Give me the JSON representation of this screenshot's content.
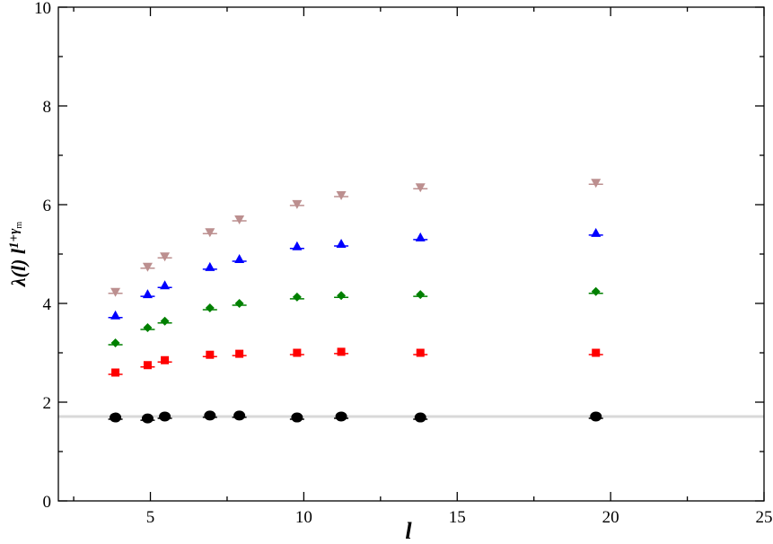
{
  "chart_data": {
    "type": "scatter",
    "xlabel": "l",
    "ylabel": "λ(l) l",
    "ylabel_superscript": "1+γ",
    "ylabel_subscript": "m",
    "xlim": [
      2,
      25
    ],
    "xticks": [
      5,
      10,
      15,
      20,
      25
    ],
    "xminorticks": [
      2.5,
      7.5,
      12.5,
      17.5,
      22.5
    ],
    "ylim": [
      0,
      10
    ],
    "yticks": [
      0,
      2,
      4,
      6,
      8,
      10
    ],
    "yminorticks": [
      1,
      3,
      5,
      7,
      9
    ],
    "hline": {
      "value": 1.71,
      "color": "#d9d9d9"
    },
    "x": [
      3.86,
      4.91,
      5.47,
      6.94,
      7.9,
      9.78,
      11.22,
      13.8,
      19.52
    ],
    "series": [
      {
        "color": "#000000",
        "marker": "circle",
        "values": [
          1.69,
          1.67,
          1.71,
          1.73,
          1.73,
          1.69,
          1.71,
          1.69,
          1.71
        ]
      },
      {
        "color": "#ff0000",
        "marker": "square",
        "values": [
          2.6,
          2.75,
          2.85,
          2.96,
          2.98,
          3.0,
          3.02,
          3.0,
          3.0
        ]
      },
      {
        "color": "#008000",
        "marker": "diamond",
        "values": [
          3.2,
          3.51,
          3.64,
          3.91,
          4.0,
          4.13,
          4.16,
          4.18,
          4.24
        ]
      },
      {
        "color": "#0000ff",
        "marker": "triangle-up",
        "values": [
          3.75,
          4.18,
          4.36,
          4.73,
          4.89,
          5.15,
          5.2,
          5.33,
          5.42
        ]
      },
      {
        "color": "#bc8f8f",
        "marker": "triangle-down",
        "values": [
          4.24,
          4.75,
          4.96,
          5.45,
          5.71,
          6.02,
          6.2,
          6.36,
          6.45
        ]
      }
    ]
  }
}
